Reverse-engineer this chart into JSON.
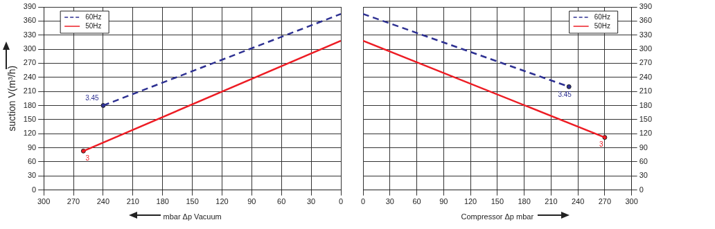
{
  "chart_data": [
    {
      "type": "line",
      "ylabel": "suction V(m³/h)",
      "xlabel": "mbar Δp Vacuum",
      "xlim": [
        300,
        0
      ],
      "xticks": [
        300,
        270,
        240,
        210,
        180,
        150,
        120,
        90,
        60,
        30,
        0
      ],
      "ylim": [
        0,
        390
      ],
      "yticks": [
        0,
        30,
        60,
        90,
        120,
        150,
        180,
        210,
        240,
        270,
        300,
        330,
        360,
        390
      ],
      "grid": true,
      "legend": "top left",
      "series": [
        {
          "name": "60Hz",
          "color": "#2e3192",
          "line_style": "dashed",
          "marker": "none",
          "x": [
            240,
            0
          ],
          "values": [
            180,
            375
          ]
        },
        {
          "name": "50Hz",
          "color": "#ed1c24",
          "line_style": "solid",
          "marker": "none",
          "x": [
            260,
            0
          ],
          "values": [
            83,
            318
          ]
        },
        {
          "type": "scatter",
          "color": "#2e3192",
          "marker": "circle",
          "x": [
            240
          ],
          "values": [
            180
          ]
        },
        {
          "type": "scatter",
          "color": "#ed1c24",
          "marker": "circle",
          "x": [
            260
          ],
          "values": [
            83
          ]
        }
      ],
      "annotations": [
        {
          "text": "3.45",
          "x": 240,
          "y": 180
        },
        {
          "text": "3",
          "x": 260,
          "y": 83
        }
      ]
    },
    {
      "type": "line",
      "xlabel": "Compressor Δp mbar",
      "xlim": [
        0,
        300
      ],
      "xticks": [
        0,
        30,
        60,
        90,
        120,
        150,
        180,
        210,
        240,
        270,
        300
      ],
      "y2lim": [
        0,
        390
      ],
      "y2ticks": [
        0,
        30,
        60,
        90,
        120,
        150,
        180,
        210,
        240,
        270,
        300,
        330,
        360,
        390
      ],
      "grid": true,
      "legend": "top right",
      "series": [
        {
          "name": "60Hz",
          "color": "#2e3192",
          "line_style": "dashed",
          "marker": "none",
          "axis": "y2",
          "x": [
            0,
            230
          ],
          "values": [
            375,
            220
          ]
        },
        {
          "name": "50Hz",
          "color": "#ed1c24",
          "line_style": "solid",
          "marker": "none",
          "axis": "y2",
          "x": [
            0,
            270
          ],
          "values": [
            318,
            112
          ]
        },
        {
          "type": "scatter",
          "color": "#2e3192",
          "marker": "circle",
          "axis": "y2",
          "x": [
            230
          ],
          "values": [
            220
          ]
        },
        {
          "type": "scatter",
          "color": "#ed1c24",
          "marker": "circle",
          "axis": "y2",
          "x": [
            270
          ],
          "values": [
            112
          ]
        }
      ],
      "annotations": [
        "3.45",
        "3"
      ]
    }
  ]
}
